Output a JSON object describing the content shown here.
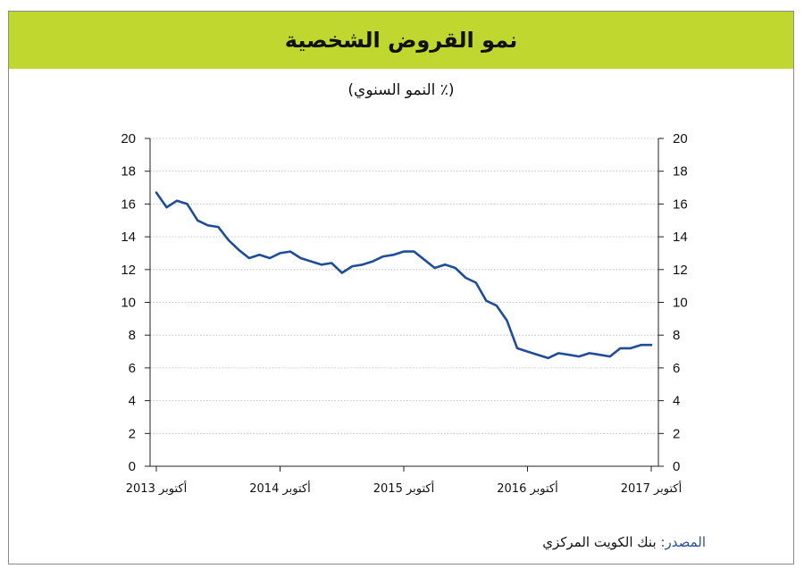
{
  "header": {
    "title": "نمو القروض الشخصية",
    "subtitle": "(٪ النمو السنوي)"
  },
  "source": {
    "label": "المصدر:",
    "text": " بنك الكويت المركزي"
  },
  "colors": {
    "title_bar": "#c0d72f",
    "line": "#1f4e96",
    "source_label": "#2a4f9c"
  },
  "chart_data": {
    "type": "line",
    "title": "نمو القروض الشخصية",
    "subtitle": "(٪ النمو السنوي)",
    "ylim": [
      0,
      20
    ],
    "yticks": [
      0,
      2,
      4,
      6,
      8,
      10,
      12,
      14,
      16,
      18,
      20
    ],
    "secondary_axis": true,
    "grid": true,
    "x_tick_labels": [
      "أكتوبر 2013",
      "أكتوبر 2014",
      "أكتوبر 2015",
      "أكتوبر 2016",
      "أكتوبر 2017"
    ],
    "x": [
      "2013-10",
      "2013-11",
      "2013-12",
      "2014-01",
      "2014-02",
      "2014-03",
      "2014-04",
      "2014-05",
      "2014-06",
      "2014-07",
      "2014-08",
      "2014-09",
      "2014-10",
      "2014-11",
      "2014-12",
      "2015-01",
      "2015-02",
      "2015-03",
      "2015-04",
      "2015-05",
      "2015-06",
      "2015-07",
      "2015-08",
      "2015-09",
      "2015-10",
      "2015-11",
      "2015-12",
      "2016-01",
      "2016-02",
      "2016-03",
      "2016-04",
      "2016-05",
      "2016-06",
      "2016-07",
      "2016-08",
      "2016-09",
      "2016-10",
      "2016-11",
      "2016-12",
      "2017-01",
      "2017-02",
      "2017-03",
      "2017-04",
      "2017-05",
      "2017-06",
      "2017-07",
      "2017-08",
      "2017-09",
      "2017-10"
    ],
    "series": [
      {
        "values": [
          16.7,
          15.8,
          16.2,
          16.0,
          15.0,
          14.7,
          14.6,
          13.8,
          13.2,
          12.7,
          12.9,
          12.7,
          13.0,
          13.1,
          12.7,
          12.5,
          12.3,
          12.4,
          11.8,
          12.2,
          12.3,
          12.5,
          12.8,
          12.9,
          13.1,
          13.1,
          12.6,
          12.1,
          12.3,
          12.1,
          11.5,
          11.2,
          10.1,
          9.8,
          8.9,
          7.2,
          7.0,
          6.8,
          6.6,
          6.9,
          6.8,
          6.7,
          6.9,
          6.8,
          6.7,
          7.2,
          7.2,
          7.4,
          7.4
        ]
      }
    ]
  }
}
